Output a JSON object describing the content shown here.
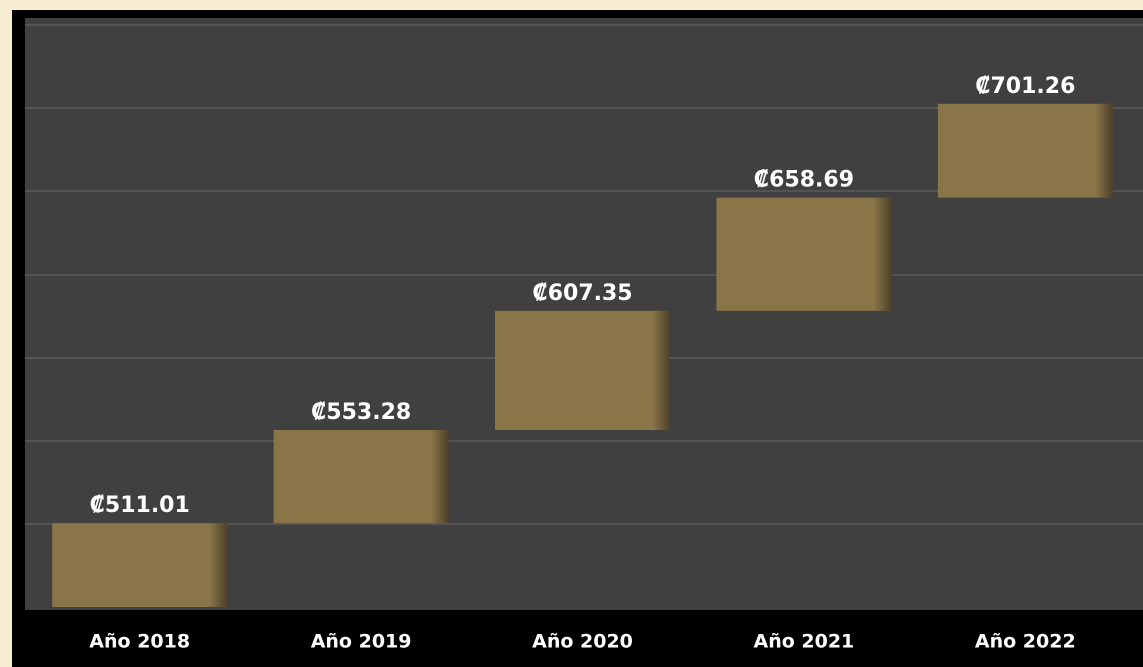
{
  "chart_data": {
    "type": "floating_bar",
    "categories": [
      "Año 2018",
      "Año 2019",
      "Año 2020",
      "Año 2021",
      "Año 2022"
    ],
    "values": [
      511.01,
      553.28,
      607.35,
      658.69,
      701.26
    ],
    "value_labels": [
      "₡511.01",
      "₡553.28",
      "₡607.35",
      "₡658.69",
      "₡701.26"
    ],
    "color": "#8a7549",
    "ylim": [
      473,
      737
    ]
  }
}
